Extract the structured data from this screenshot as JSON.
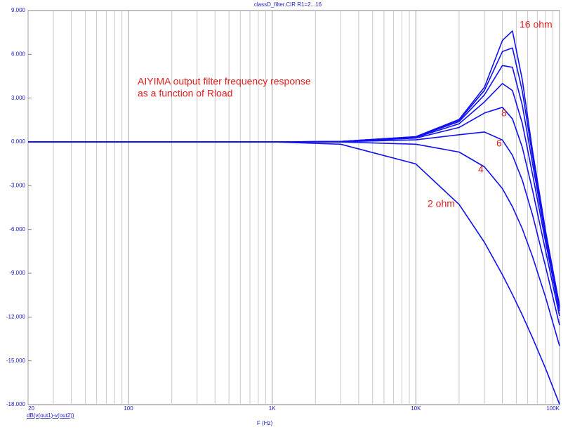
{
  "chart_data": {
    "type": "line",
    "title": "classD_filter.CIR R1=2...16",
    "x_label": "F (Hz)",
    "y_label": "dB(v(out1)-v(out2))",
    "annotations": [
      "AIYIMA output filter frequency response",
      "as a function of Rload",
      "16 ohm",
      "8",
      "6",
      "4",
      "2 ohm"
    ],
    "x_scale": "log",
    "xlim": [
      20,
      100000
    ],
    "xticks": [
      20,
      100,
      {
        "value": 1000,
        "label": "1K"
      },
      {
        "value": 10000,
        "label": "10K"
      },
      {
        "value": 100000,
        "label": "100K"
      }
    ],
    "xminorticks": [
      30,
      40,
      50,
      60,
      70,
      80,
      90,
      200,
      300,
      400,
      500,
      600,
      700,
      800,
      900,
      2000,
      3000,
      4000,
      5000,
      6000,
      7000,
      8000,
      9000,
      20000,
      30000,
      40000,
      50000,
      60000,
      70000,
      80000,
      90000
    ],
    "ylim": [
      -18,
      9
    ],
    "yticks": [
      {
        "value": 9,
        "label": "9.000"
      },
      {
        "value": 6,
        "label": "6.000"
      },
      {
        "value": 3,
        "label": "3.000"
      },
      {
        "value": 0,
        "label": "0.000"
      },
      {
        "value": -3,
        "label": "-3.000"
      },
      {
        "value": -6,
        "label": "-6.000"
      },
      {
        "value": -9,
        "label": "-9.000"
      },
      {
        "value": -12,
        "label": "-12.000"
      },
      {
        "value": -15,
        "label": "-15.000"
      },
      {
        "value": -18,
        "label": "-18.000"
      }
    ],
    "grid": true,
    "x": [
      20,
      1000,
      3000,
      10000,
      20000,
      30000,
      40000,
      47000,
      55000,
      65000,
      80000,
      100000
    ],
    "series": [
      {
        "color": "#1010f0",
        "values": [
          0,
          0,
          -0.16,
          -1.51,
          -4.29,
          -6.88,
          -9.1,
          -10.46,
          -11.86,
          -13.44,
          -15.54,
          -17.98
        ]
      },
      {
        "color": "#1010f0",
        "values": [
          0,
          0,
          -0.01,
          -0.16,
          -0.7,
          -1.71,
          -3.2,
          -4.44,
          -5.95,
          -7.89,
          -10.66,
          -13.98
        ]
      },
      {
        "color": "#1010f0",
        "values": [
          0,
          0,
          0.01,
          0.14,
          0.49,
          0.68,
          0.13,
          -0.92,
          -2.62,
          -5.04,
          -8.56,
          -12.56
        ]
      },
      {
        "color": "#1010f0",
        "values": [
          0,
          0,
          0.02,
          0.26,
          0.99,
          1.98,
          2.37,
          1.58,
          -0.36,
          -3.35,
          -7.49,
          -11.93
        ]
      },
      {
        "color": "#1010f0",
        "values": [
          0,
          0,
          0.03,
          0.31,
          1.24,
          2.74,
          4.0,
          3.52,
          1.28,
          -2.26,
          -6.89,
          -11.6
        ]
      },
      {
        "color": "#1010f0",
        "values": [
          0,
          0,
          0.03,
          0.34,
          1.39,
          3.22,
          5.23,
          5.11,
          2.52,
          -1.53,
          -6.53,
          -11.41
        ]
      },
      {
        "color": "#1010f0",
        "values": [
          0,
          0,
          0.03,
          0.35,
          1.48,
          3.53,
          6.19,
          6.44,
          3.5,
          -1.03,
          -6.29,
          -11.29
        ]
      },
      {
        "color": "#1010f0",
        "values": [
          0,
          0,
          0.03,
          0.36,
          1.54,
          3.75,
          6.95,
          7.6,
          4.27,
          -0.66,
          -6.13,
          -11.22
        ]
      }
    ]
  }
}
